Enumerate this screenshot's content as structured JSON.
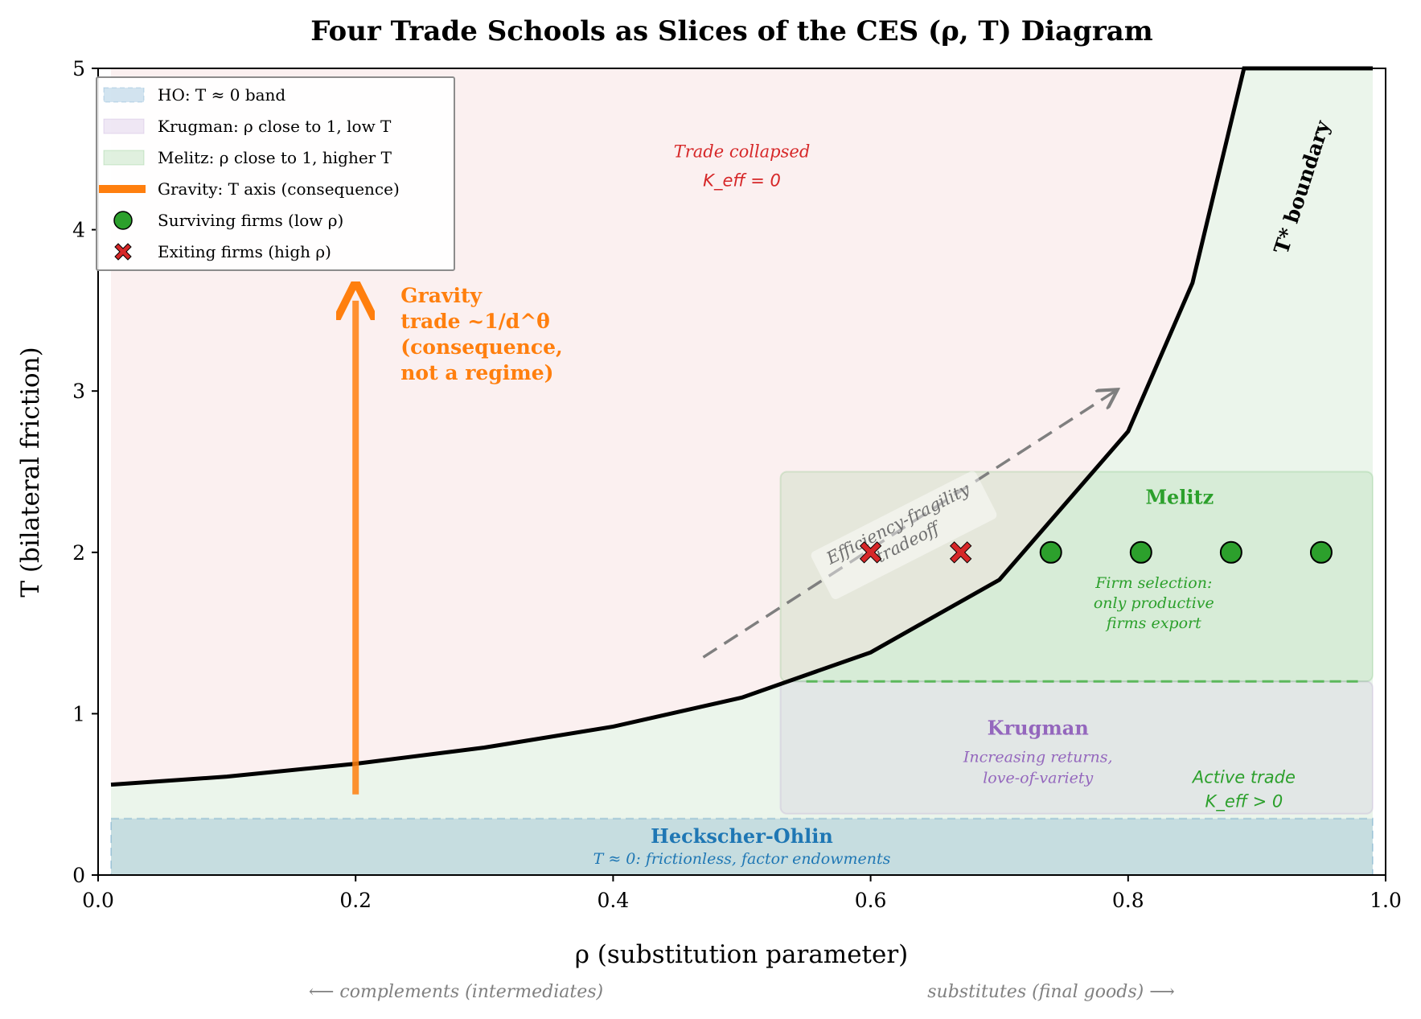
{
  "chart_data": {
    "type": "line",
    "title": "Four Trade Schools as Slices of the CES (ρ, T) Diagram",
    "xlabel": "ρ (substitution parameter)",
    "ylabel": "T (bilateral friction)",
    "xlim": [
      0,
      1
    ],
    "ylim": [
      0,
      5
    ],
    "x_ticks": [
      "0.0",
      "0.2",
      "0.4",
      "0.6",
      "0.8",
      "1.0"
    ],
    "y_ticks": [
      "0",
      "1",
      "2",
      "3",
      "4",
      "5"
    ],
    "grid": false,
    "legend_position": "top-left",
    "boundary_curve": {
      "label": "T* boundary",
      "points": [
        [
          0.01,
          0.56
        ],
        [
          0.1,
          0.61
        ],
        [
          0.2,
          0.69
        ],
        [
          0.3,
          0.79
        ],
        [
          0.4,
          0.92
        ],
        [
          0.5,
          1.1
        ],
        [
          0.6,
          1.38
        ],
        [
          0.7,
          1.83
        ],
        [
          0.8,
          2.75
        ],
        [
          0.85,
          3.67
        ],
        [
          0.89,
          5.0
        ],
        [
          0.99,
          5.0
        ]
      ],
      "color": "#000000"
    },
    "regions": [
      {
        "name": "HO: T ≈ 0 band",
        "rho": [
          0.01,
          0.99
        ],
        "T": [
          0,
          0.35
        ],
        "color": "#1f77b4",
        "label": "Heckscher-Ohlin",
        "sublabel": "T ≈ 0: frictionless, factor endowments"
      },
      {
        "name": "Krugman: ρ close to 1, low T",
        "rho": [
          0.53,
          0.99
        ],
        "T": [
          0.38,
          1.2
        ],
        "color": "#9467bd",
        "label": "Krugman",
        "sublabel": "Increasing returns, love-of-variety"
      },
      {
        "name": "Melitz: ρ close to 1, higher T",
        "rho": [
          0.53,
          0.99
        ],
        "T": [
          1.2,
          2.5
        ],
        "color": "#2ca02c",
        "label": "Melitz",
        "sublabel": "Firm selection: only productive firms export"
      }
    ],
    "gravity_arrow": {
      "name": "Gravity: T axis (consequence)",
      "rho": 0.2,
      "T": [
        0.5,
        3.6
      ],
      "color": "#ff7f0e",
      "label_lines": [
        "Gravity",
        "trade  ~1/d^θ",
        "(consequence,",
        "not a regime)"
      ]
    },
    "tradeoff_arrow": {
      "from": [
        0.47,
        1.35
      ],
      "to": [
        0.79,
        3.0
      ],
      "label": "Efficiency-fragility tradeoff"
    },
    "surviving_firms": {
      "name": "Surviving firms (low ρ)",
      "x": [
        0.74,
        0.81,
        0.88,
        0.95
      ],
      "y": [
        2,
        2,
        2,
        2
      ],
      "color": "#2ca02c"
    },
    "exiting_firms": {
      "name": "Exiting firms (high ρ)",
      "x": [
        0.6,
        0.67
      ],
      "y": [
        2,
        2
      ],
      "color": "#d62728"
    },
    "annotations": {
      "collapsed": [
        "Trade collapsed",
        "K_eff = 0"
      ],
      "active": [
        "Active trade",
        "K_eff > 0"
      ],
      "left_note": "⟵  complements (intermediates)",
      "right_note": "substitutes (final goods)  ⟶"
    },
    "colors": {
      "collapsed_zone": "#fbf0f0",
      "active_zone": "#ebf5eb"
    }
  }
}
